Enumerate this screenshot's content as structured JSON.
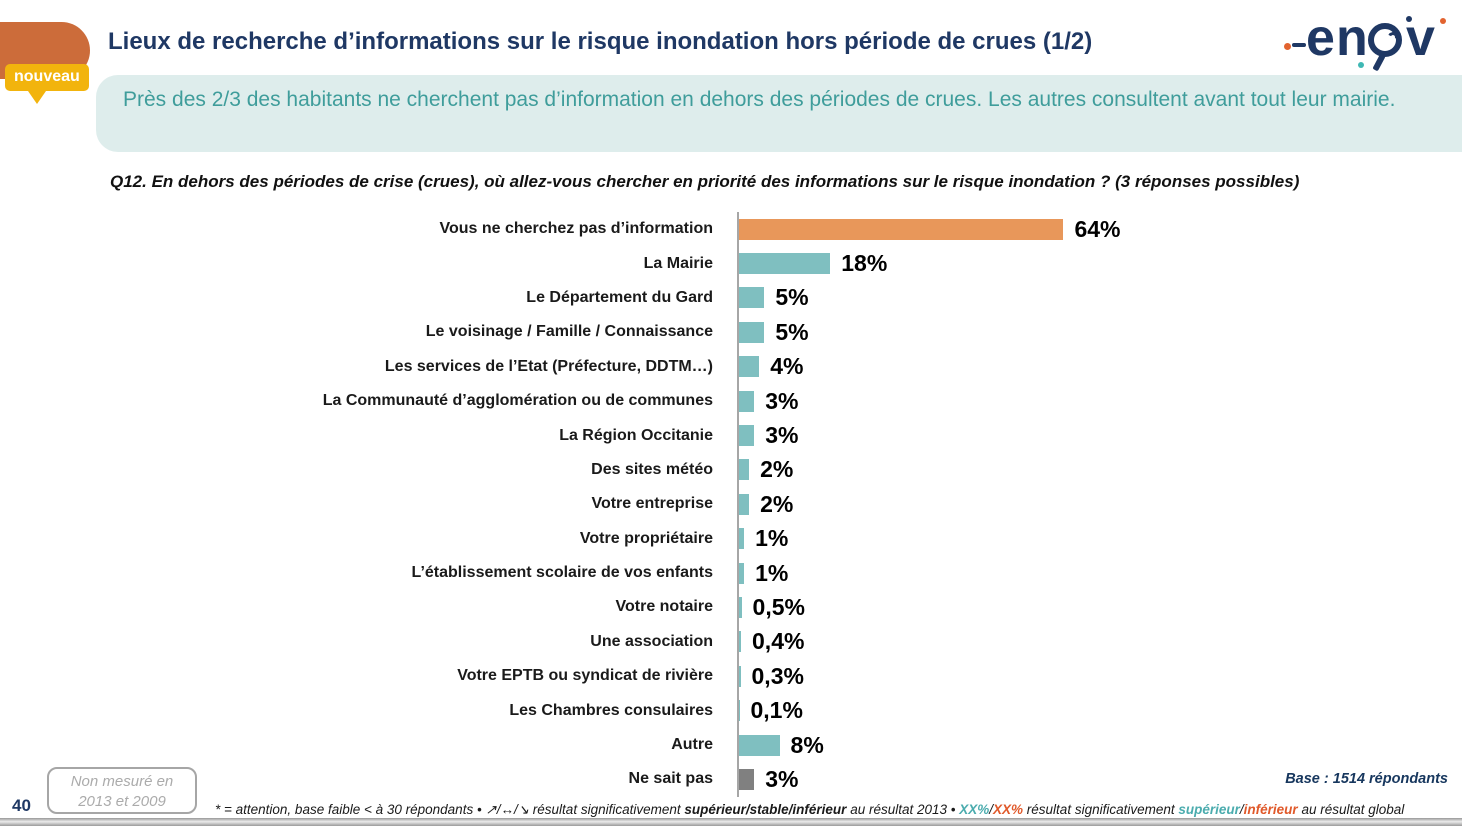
{
  "header": {
    "title": "Lieux de recherche d’informations sur le risque inondation hors période de crues (1/2)",
    "badge": "nouveau",
    "banner": "Près des 2/3 des habitants ne cherchent pas d’information en dehors des périodes de crues. Les autres consultent avant tout leur mairie."
  },
  "logo": {
    "e": "e",
    "n": "n",
    "v": "v"
  },
  "question": "Q12. En dehors des périodes de crise (crues), où allez-vous chercher en priorité des informations sur le risque inondation ? (3 réponses possibles)",
  "chart_data": {
    "type": "bar",
    "orientation": "horizontal",
    "categories": [
      "Vous ne cherchez pas d’information",
      "La Mairie",
      "Le Département du Gard",
      "Le voisinage / Famille / Connaissance",
      "Les services de l’Etat (Préfecture, DDTM…)",
      "La Communauté d’agglomération ou de communes",
      "La Région Occitanie",
      "Des sites météo",
      "Votre entreprise",
      "Votre propriétaire",
      "L’établissement scolaire de vos enfants",
      "Votre notaire",
      "Une association",
      "Votre EPTB ou syndicat de rivière",
      "Les Chambres consulaires",
      "Autre",
      "Ne sait pas"
    ],
    "values": [
      64,
      18,
      5,
      5,
      4,
      3,
      3,
      2,
      2,
      1,
      1,
      0.5,
      0.4,
      0.3,
      0.1,
      8,
      3
    ],
    "value_labels": [
      "64%",
      "18%",
      "5%",
      "5%",
      "4%",
      "3%",
      "3%",
      "2%",
      "2%",
      "1%",
      "1%",
      "0,5%",
      "0,4%",
      "0,3%",
      "0,1%",
      "8%",
      "3%"
    ],
    "colors": [
      "#E8975A",
      "#7FBFC0",
      "#7FBFC0",
      "#7FBFC0",
      "#7FBFC0",
      "#7FBFC0",
      "#7FBFC0",
      "#7FBFC0",
      "#7FBFC0",
      "#7FBFC0",
      "#7FBFC0",
      "#7FBFC0",
      "#7FBFC0",
      "#7FBFC0",
      "#7FBFC0",
      "#7FBFC0",
      "#808080"
    ],
    "xlim": [
      0,
      70
    ],
    "grid": false,
    "legend": false
  },
  "footer": {
    "page_number": "40",
    "note_line1": "Non mesuré en",
    "note_line2": "2013 et 2009",
    "base": "Base : 1514 répondants",
    "footnote_parts": [
      {
        "text": "* = attention, base faible < à 30 répondants • ↗/↔/↘  résultat significativement ",
        "style": "plain"
      },
      {
        "text": "supérieur/stable/inférieur",
        "style": "bold"
      },
      {
        "text": " au résultat 2013 • ",
        "style": "plain"
      },
      {
        "text": "XX%",
        "style": "teal"
      },
      {
        "text": "/",
        "style": "plain"
      },
      {
        "text": "XX%",
        "style": "orange"
      },
      {
        "text": " résultat significativement ",
        "style": "plain"
      },
      {
        "text": "supérieur",
        "style": "teal"
      },
      {
        "text": "/",
        "style": "plain"
      },
      {
        "text": "inférieur",
        "style": "orange"
      },
      {
        "text": " au résultat global",
        "style": "plain"
      }
    ]
  },
  "colors": {
    "navy": "#1F3864",
    "bar_orange": "#E8975A",
    "bar_teal": "#7FBFC0",
    "bar_gray": "#808080",
    "badge_yellow": "#F2B40D",
    "tab_orange": "#CC6C3A",
    "banner_bg": "#DEEDEC",
    "banner_text": "#3F9D9B",
    "teal_text": "#4BACAE",
    "orange_text": "#E0592A"
  }
}
